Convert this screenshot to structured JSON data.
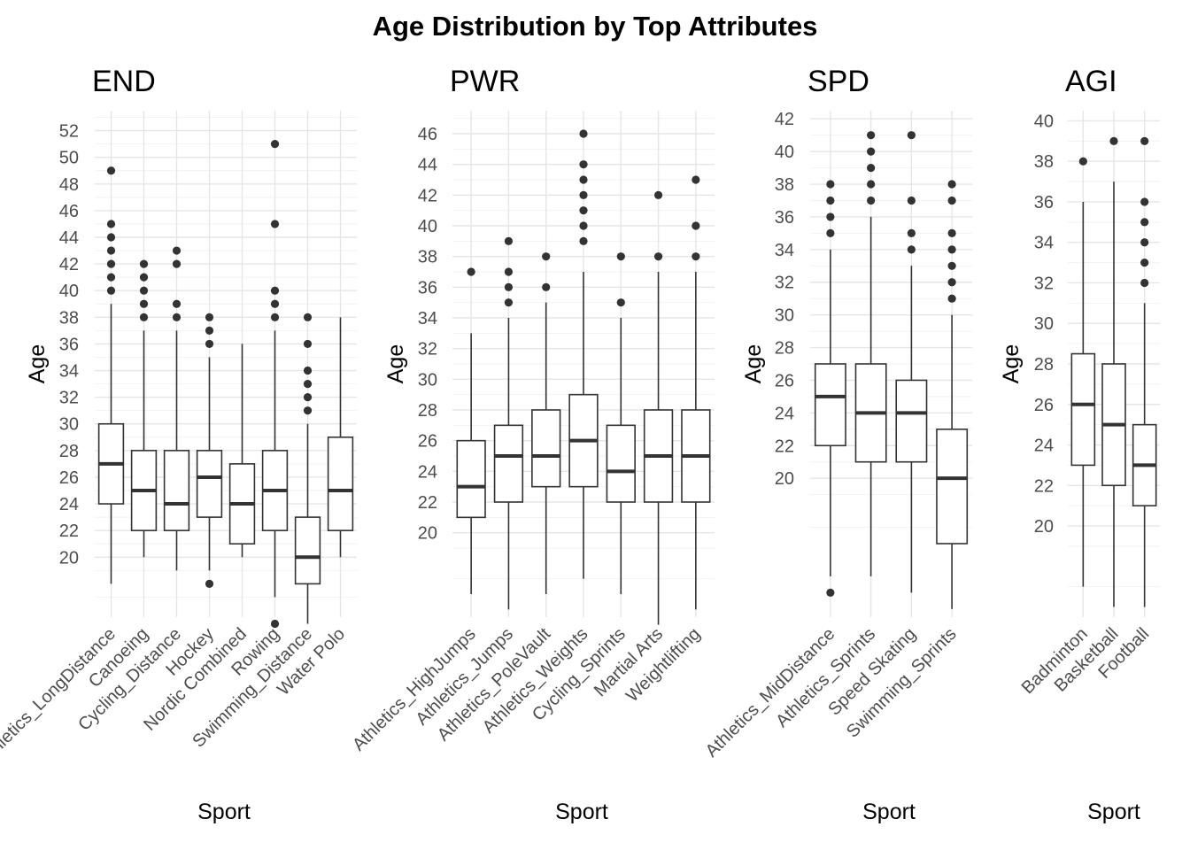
{
  "chart_data": {
    "type": "boxplot",
    "title": "Age Distribution by Top Attributes",
    "panels": [
      {
        "title": "END",
        "xlabel": "Sport",
        "ylabel": "Age",
        "ylim": [
          15.5,
          53.5
        ],
        "yticks": [
          20,
          22,
          24,
          26,
          28,
          30,
          32,
          34,
          36,
          38,
          40,
          42,
          44,
          46,
          48,
          50,
          52
        ],
        "categories": [
          {
            "name": "Athletics_LongDistance",
            "low": 18,
            "q1": 24,
            "median": 27,
            "q3": 30,
            "high": 39,
            "outliers": [
              40,
              41,
              42,
              43,
              44,
              45,
              49
            ]
          },
          {
            "name": "Canoeing",
            "low": 20,
            "q1": 22,
            "median": 25,
            "q3": 28,
            "high": 37,
            "outliers": [
              38,
              39,
              40,
              41,
              42
            ]
          },
          {
            "name": "Cycling_Distance",
            "low": 19,
            "q1": 22,
            "median": 24,
            "q3": 28,
            "high": 37,
            "outliers": [
              38,
              39,
              42,
              43
            ]
          },
          {
            "name": "Hockey",
            "low": 19,
            "q1": 23,
            "median": 26,
            "q3": 28,
            "high": 35,
            "outliers": [
              18,
              36,
              37,
              38
            ]
          },
          {
            "name": "Nordic Combined",
            "low": 20,
            "q1": 21,
            "median": 24,
            "q3": 27,
            "high": 36,
            "outliers": []
          },
          {
            "name": "Rowing",
            "low": 17,
            "q1": 22,
            "median": 25,
            "q3": 28,
            "high": 37,
            "outliers": [
              15,
              38,
              39,
              40,
              45,
              51
            ]
          },
          {
            "name": "Swimming_Distance",
            "low": 15,
            "q1": 18,
            "median": 20,
            "q3": 23,
            "high": 30,
            "outliers": [
              31,
              32,
              33,
              34,
              36,
              38
            ]
          },
          {
            "name": "Water Polo",
            "low": 20,
            "q1": 22,
            "median": 25,
            "q3": 29,
            "high": 38,
            "outliers": []
          }
        ]
      },
      {
        "title": "PWR",
        "xlabel": "Sport",
        "ylabel": "Age",
        "ylim": [
          14.5,
          47.5
        ],
        "yticks": [
          20,
          22,
          24,
          26,
          28,
          30,
          32,
          34,
          36,
          38,
          40,
          42,
          44,
          46
        ],
        "categories": [
          {
            "name": "Athletics_HighJumps",
            "low": 16,
            "q1": 21,
            "median": 23,
            "q3": 26,
            "high": 33,
            "outliers": [
              37
            ]
          },
          {
            "name": "Athletics_Jumps",
            "low": 15,
            "q1": 22,
            "median": 25,
            "q3": 27,
            "high": 34,
            "outliers": [
              35,
              36,
              37,
              39
            ]
          },
          {
            "name": "Athletics_PoleVault",
            "low": 16,
            "q1": 23,
            "median": 25,
            "q3": 28,
            "high": 35,
            "outliers": [
              36,
              38
            ]
          },
          {
            "name": "Athletics_Weights",
            "low": 17,
            "q1": 23,
            "median": 26,
            "q3": 29,
            "high": 37,
            "outliers": [
              39,
              40,
              41,
              42,
              43,
              44,
              46
            ]
          },
          {
            "name": "Cycling_Sprints",
            "low": 16,
            "q1": 22,
            "median": 24,
            "q3": 27,
            "high": 34,
            "outliers": [
              35,
              38
            ]
          },
          {
            "name": "Martial Arts",
            "low": 14,
            "q1": 22,
            "median": 25,
            "q3": 28,
            "high": 37,
            "outliers": [
              38,
              42
            ]
          },
          {
            "name": "Weightlifting",
            "low": 15,
            "q1": 22,
            "median": 25,
            "q3": 28,
            "high": 37,
            "outliers": [
              38,
              40,
              43
            ]
          }
        ]
      },
      {
        "title": "SPD",
        "xlabel": "Sport",
        "ylabel": "Age",
        "ylim": [
          11.5,
          42.5
        ],
        "yticks": [
          20,
          22,
          24,
          26,
          28,
          30,
          32,
          34,
          36,
          38,
          40,
          42
        ],
        "categories": [
          {
            "name": "Athletics_MidDistance",
            "low": 14,
            "q1": 22,
            "median": 25,
            "q3": 27,
            "high": 34,
            "outliers": [
              13,
              35,
              36,
              37,
              38
            ]
          },
          {
            "name": "Athletics_Sprints",
            "low": 14,
            "q1": 21,
            "median": 24,
            "q3": 27,
            "high": 36,
            "outliers": [
              37,
              38,
              39,
              40,
              41
            ]
          },
          {
            "name": "Speed Skating",
            "low": 13,
            "q1": 21,
            "median": 24,
            "q3": 26,
            "high": 33,
            "outliers": [
              34,
              35,
              37,
              41
            ]
          },
          {
            "name": "Swimming_Sprints",
            "low": 12,
            "q1": 16,
            "median": 20,
            "q3": 23,
            "high": 30,
            "outliers": [
              31,
              32,
              33,
              34,
              35,
              37,
              38
            ]
          }
        ]
      },
      {
        "title": "AGI",
        "xlabel": "Sport",
        "ylabel": "Age",
        "ylim": [
          15.5,
          40.5
        ],
        "yticks": [
          20,
          22,
          24,
          26,
          28,
          30,
          32,
          34,
          36,
          38,
          40
        ],
        "categories": [
          {
            "name": "Badminton",
            "low": 17,
            "q1": 23,
            "median": 26,
            "q3": 28.5,
            "high": 36,
            "outliers": [
              38
            ]
          },
          {
            "name": "Basketball",
            "low": 16,
            "q1": 22,
            "median": 25,
            "q3": 28,
            "high": 37,
            "outliers": [
              39
            ]
          },
          {
            "name": "Football",
            "low": 16,
            "q1": 21,
            "median": 23,
            "q3": 25,
            "high": 31,
            "outliers": [
              32,
              33,
              34,
              35,
              36,
              39
            ]
          }
        ]
      }
    ]
  }
}
